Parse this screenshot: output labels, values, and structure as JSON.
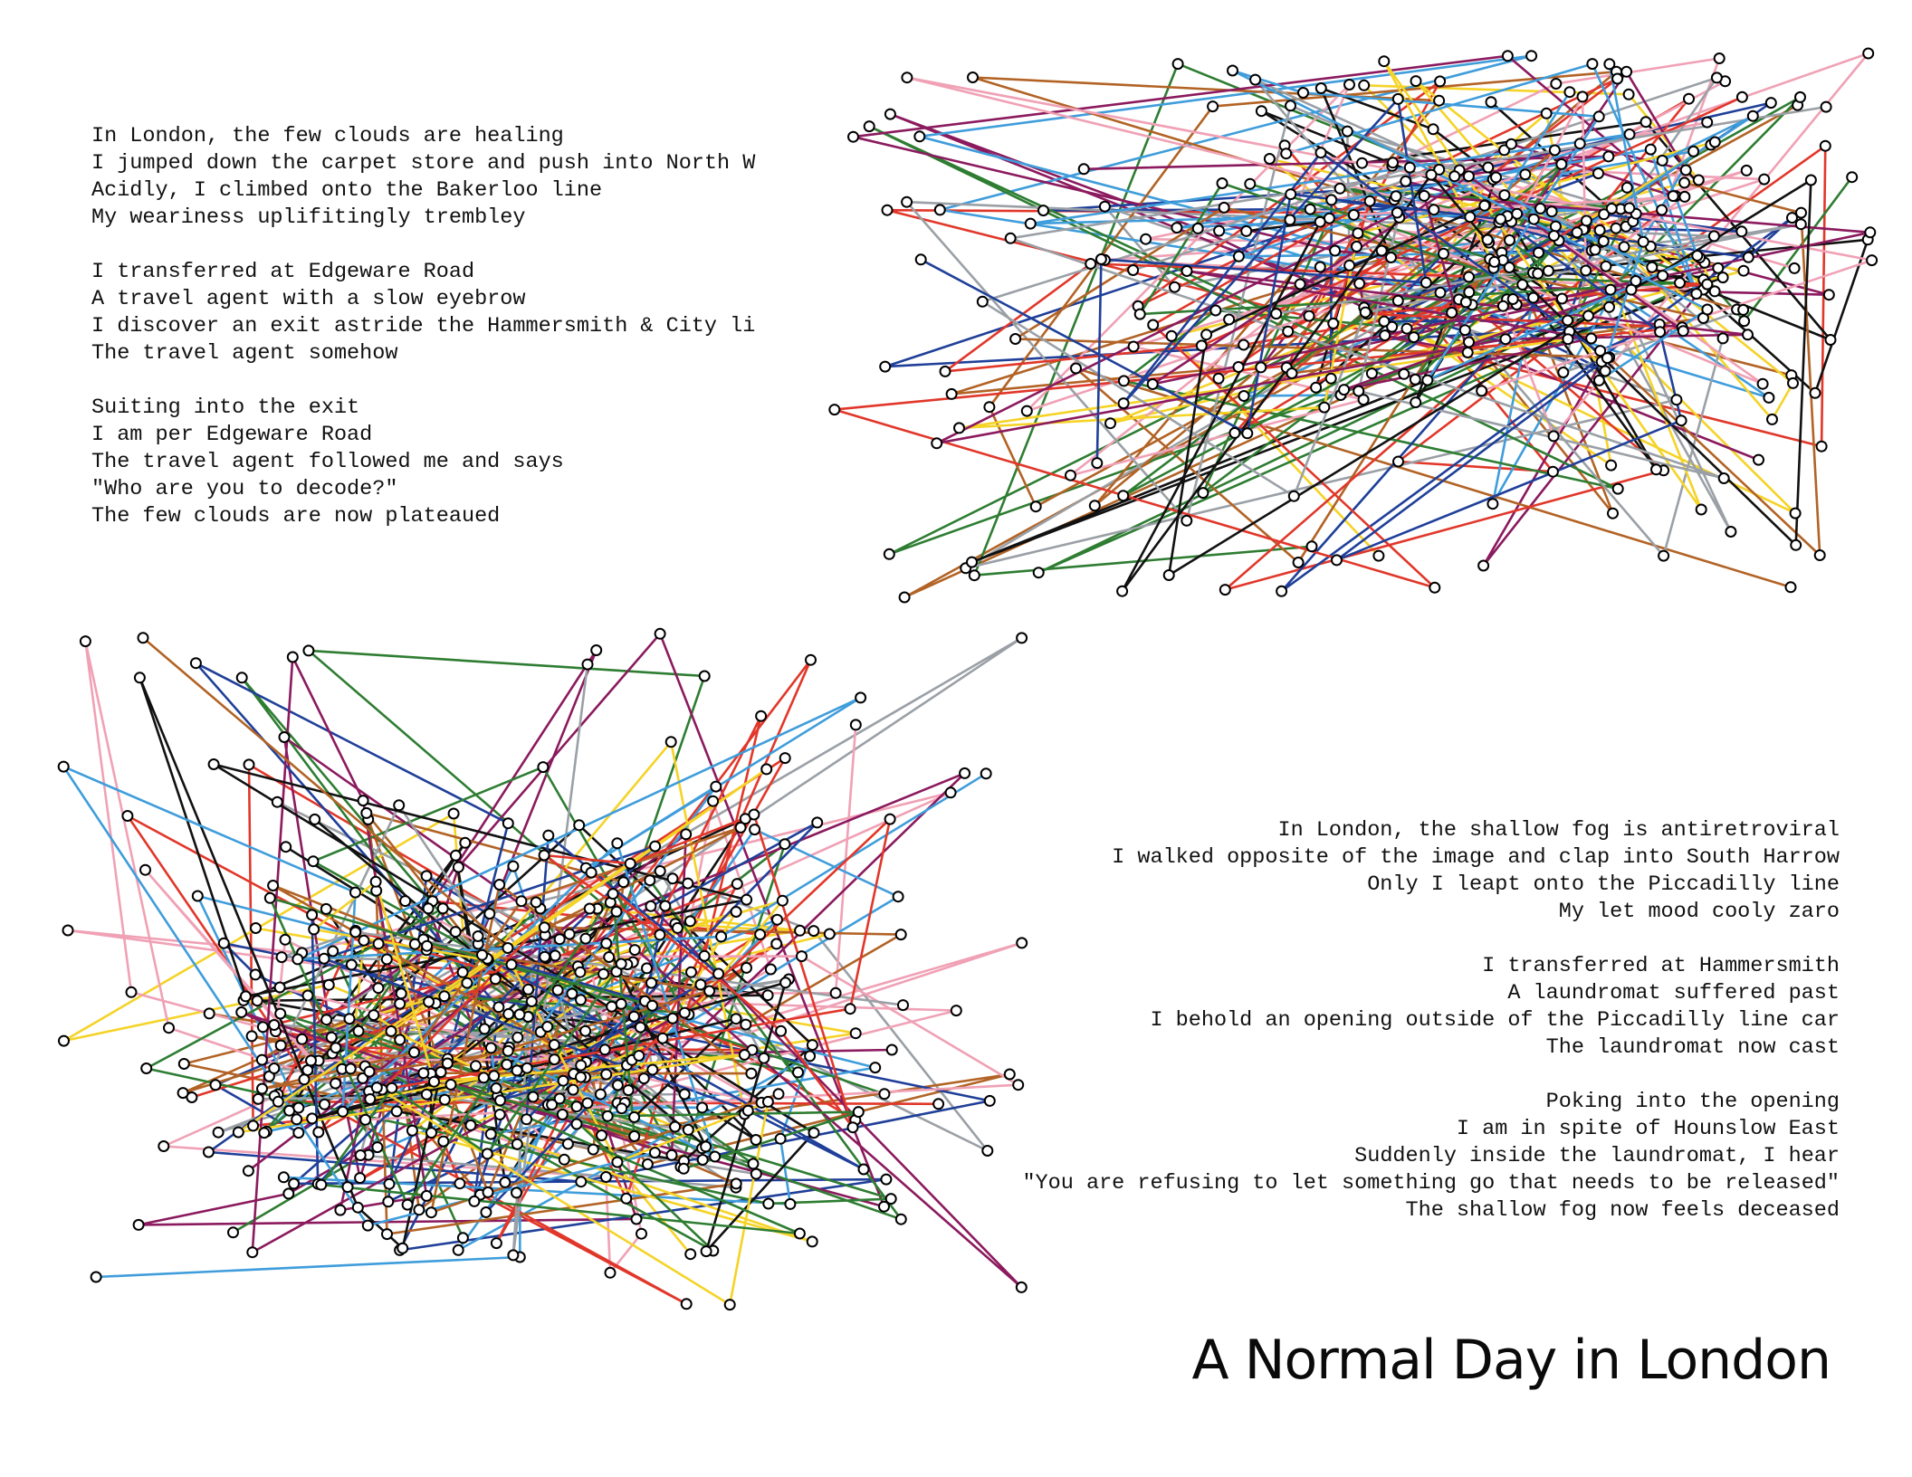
{
  "poem_1": {
    "stanzas": [
      [
        "In London, the few clouds are healing",
        "I jumped down the carpet store and push into North W",
        "Acidly, I climbed onto the Bakerloo line",
        "My weariness uplifitingly trembley"
      ],
      [
        "I transferred at Edgeware Road",
        "A travel agent with a slow eyebrow",
        "I discover an exit astride the Hammersmith & City li",
        "The travel agent somehow"
      ],
      [
        "Suiting into the exit",
        "I am per Edgeware Road",
        "The travel agent followed me and says",
        "\"Who are you to decode?\"",
        "The few clouds are now plateaued"
      ]
    ]
  },
  "poem_2": {
    "stanzas": [
      [
        "In London, the shallow fog is antiretroviral",
        "I walked opposite of the image and clap into South Harrow",
        "Only I leapt onto the Piccadilly line",
        "My let mood cooly zaro"
      ],
      [
        "I transferred at Hammersmith",
        "A laundromat suffered past",
        "I behold an opening outside of the Piccadilly line car",
        "The laundromat now cast"
      ],
      [
        "Poking into the opening",
        "I am in spite of Hounslow East",
        "Suddenly inside the laundromat, I hear",
        "\"You are refusing to let something go that needs to be released\"",
        "The shallow fog now feels deceased"
      ]
    ]
  },
  "title": "A Normal Day in London",
  "line_colors": {
    "bakerloo": "#b26325",
    "central": "#e1372a",
    "circle": "#f5d327",
    "district": "#2e7d32",
    "hammersmith_city": "#f0a1b5",
    "jubilee": "#9aa0a6",
    "metropolitan": "#8b1a5e",
    "northern": "#111111",
    "piccadilly": "#1f3f99",
    "victoria": "#3f9ddb"
  },
  "station_marker": "white-circle-black-outline"
}
